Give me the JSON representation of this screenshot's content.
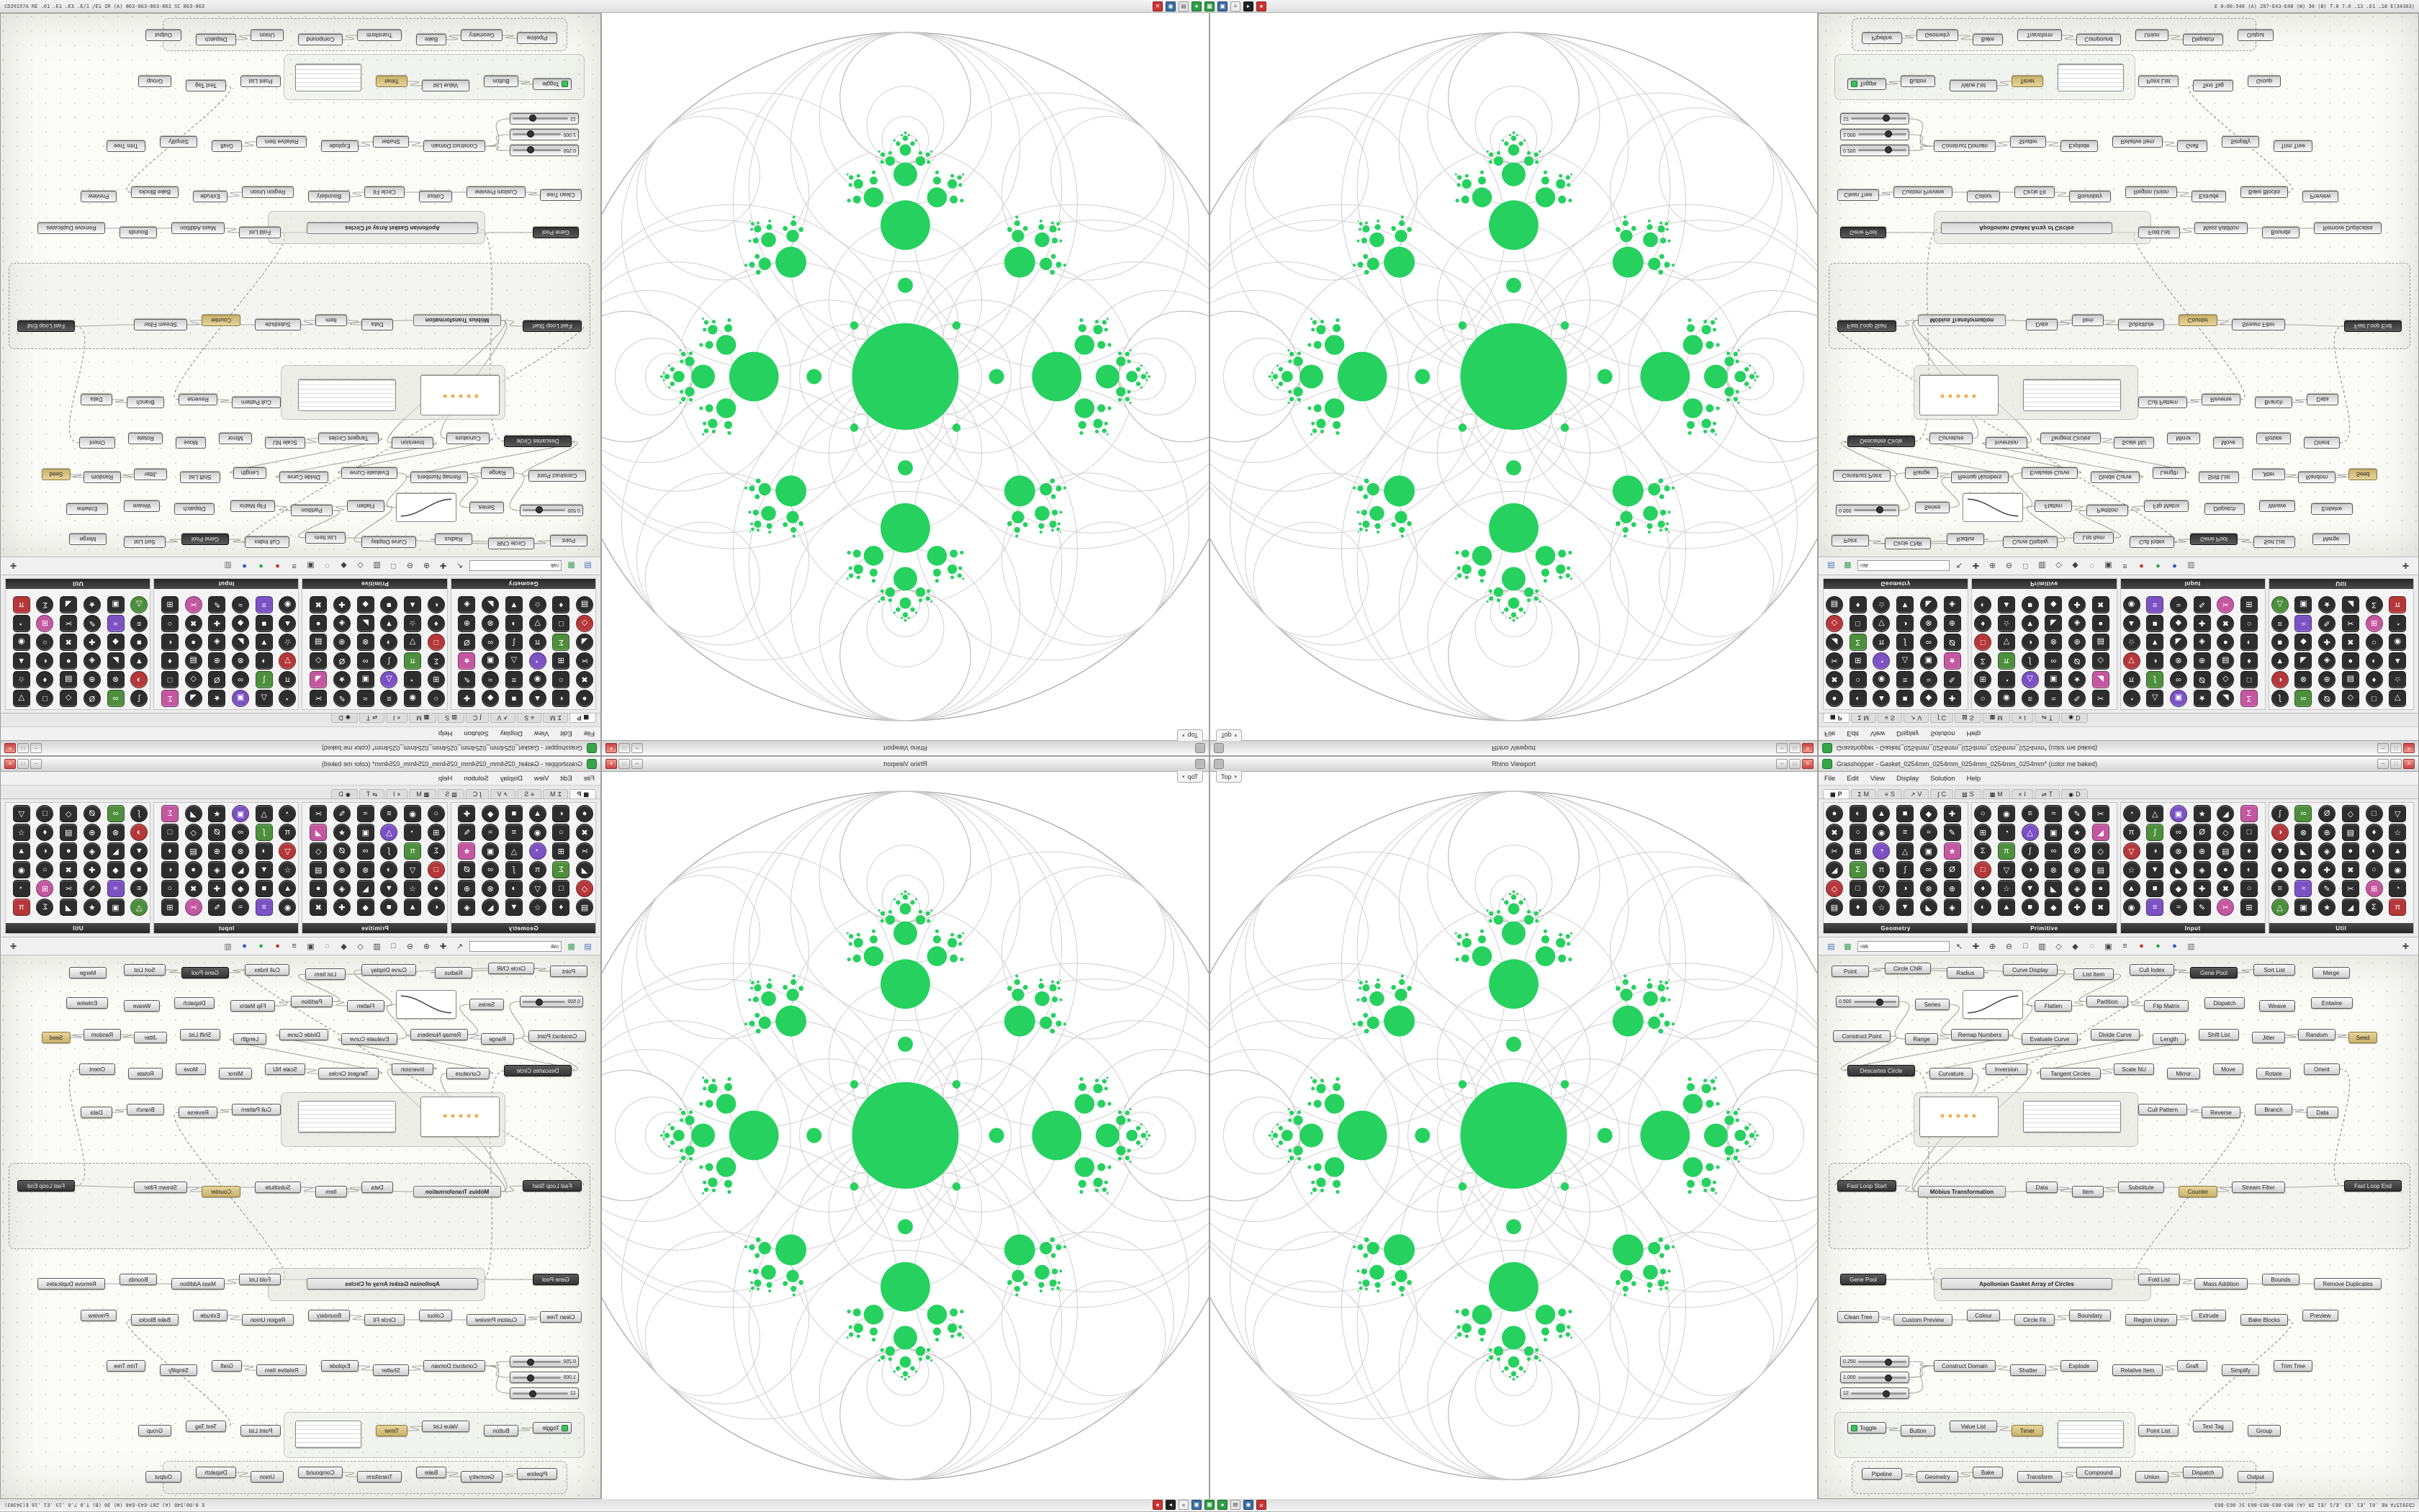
{
  "strip": {
    "left_text": "CD39157A RE .01 .E1 .E3 .E/1 /E1 IR (A) 863-863-863-863 SC 863-863",
    "right_text": "E 0:00:548 (A) 287-E43-E48 (W) 30 (B) T.0 7.0 .13 .E1 .18 E(34303)",
    "icons": [
      {
        "name": "close-window-icon",
        "glyph": "✕",
        "color": "#cc3333",
        "fg": "#fff"
      },
      {
        "name": "rhino-app-icon",
        "glyph": "◉",
        "color": "#3a6ea5",
        "fg": "#fff"
      },
      {
        "name": "file-manager-icon",
        "glyph": "▤",
        "color": "#e8e8e8",
        "fg": "#555"
      },
      {
        "name": "grasshopper-app-icon",
        "glyph": "●",
        "color": "#2e9e44",
        "fg": "#fff"
      },
      {
        "name": "display-settings-icon",
        "glyph": "▦",
        "color": "#2e9e44",
        "fg": "#fff"
      },
      {
        "name": "panel-manager-icon",
        "glyph": "▣",
        "color": "#3a6ea5",
        "fg": "#fff"
      },
      {
        "name": "document-icon",
        "glyph": "≡",
        "color": "#f0f0f0",
        "fg": "#555"
      },
      {
        "name": "terminal-icon",
        "glyph": "▸",
        "color": "#222222",
        "fg": "#fff"
      },
      {
        "name": "record-icon",
        "glyph": "●",
        "color": "#cc3333",
        "fg": "#fff"
      }
    ]
  },
  "viewport": {
    "title": "Rhino Viewport",
    "top_tab": "Top",
    "caret": "▾",
    "window_buttons": [
      "–",
      "□",
      "×"
    ]
  },
  "fractal": {
    "green": "#26d15f",
    "lace_stroke": "#cfcfcf",
    "outer_stroke": "#b2b2b2"
  },
  "grasshopper": {
    "title": "Grasshopper - Gasket_0254mm_0254mm_0254mm_0254mm_0254mm* (color me baked)",
    "window_buttons": [
      "–",
      "□",
      "×"
    ],
    "menus": [
      "File",
      "Edit",
      "View",
      "Display",
      "Solution",
      "Help"
    ],
    "tabs": [
      {
        "name": "Params",
        "short": "P",
        "glyph": "▦",
        "selected": true
      },
      {
        "name": "Maths",
        "short": "M",
        "glyph": "Σ"
      },
      {
        "name": "Sets",
        "short": "S",
        "glyph": "≡"
      },
      {
        "name": "Vector",
        "short": "V",
        "glyph": "↗"
      },
      {
        "name": "Curve",
        "short": "C",
        "glyph": "∫"
      },
      {
        "name": "Surface",
        "short": "S",
        "glyph": "▧"
      },
      {
        "name": "Mesh",
        "short": "M",
        "glyph": "▩"
      },
      {
        "name": "Intersect",
        "short": "I",
        "glyph": "×"
      },
      {
        "name": "Transform",
        "short": "T",
        "glyph": "⇄"
      },
      {
        "name": "Display",
        "short": "D",
        "glyph": "◉"
      }
    ],
    "palette": {
      "groups": [
        "Geometry",
        "Primitive",
        "Input",
        "Util"
      ],
      "icon_glyphs": "●◐▲■◆✚✖○◉≡≈✎✂⊞◔△▣★◢Σπ∫∞Ø◇□▽◑⊗⊕▤♦☆▼◣◈",
      "icons_per_group": 36
    },
    "toolbar": {
      "search_value": "rak",
      "icons": [
        {
          "name": "open-definition-icon",
          "glyph": "▤",
          "color": "#4a7ab5"
        },
        {
          "name": "save-definition-icon",
          "glyph": "▦",
          "color": "#3f9e4f"
        },
        {
          "name": "selection-arrow-icon",
          "glyph": "↖",
          "color": "#444"
        },
        {
          "name": "pan-icon",
          "glyph": "✚",
          "color": "#444"
        },
        {
          "name": "zoom-in-icon",
          "glyph": "⊕",
          "color": "#444"
        },
        {
          "name": "zoom-out-icon",
          "glyph": "⊖",
          "color": "#444"
        },
        {
          "name": "zoom-extents-icon",
          "glyph": "□",
          "color": "#444"
        },
        {
          "name": "named-views-icon",
          "glyph": "▥",
          "color": "#444"
        },
        {
          "name": "preview-wireframe-icon",
          "glyph": "◇",
          "color": "#444"
        },
        {
          "name": "preview-shaded-icon",
          "glyph": "◆",
          "color": "#444"
        },
        {
          "name": "hide-preview-icon",
          "glyph": "◌",
          "color": "#444"
        },
        {
          "name": "group-icon",
          "glyph": "▣",
          "color": "#444"
        },
        {
          "name": "cluster-icon",
          "glyph": "≡",
          "color": "#444"
        },
        {
          "name": "red-channel-icon",
          "glyph": "●",
          "color": "#cc3333"
        },
        {
          "name": "green-channel-icon",
          "glyph": "●",
          "color": "#33aa44"
        },
        {
          "name": "blue-channel-icon",
          "glyph": "●",
          "color": "#3355cc"
        },
        {
          "name": "gradient-icon",
          "glyph": "▥",
          "color": "#666"
        },
        {
          "name": "canvas-compass-icon",
          "glyph": "✚",
          "color": "#555"
        }
      ]
    },
    "canvas": {
      "groups": [
        [
          14,
          288,
          806,
          118,
          "dashed"
        ],
        [
          132,
          190,
          310,
          74,
          "light"
        ],
        [
          160,
          434,
          300,
          44,
          "light"
        ],
        [
          22,
          634,
          416,
          62,
          "dotted"
        ],
        [
          46,
          702,
          560,
          44,
          "dashed"
        ]
      ],
      "nodes": [
        [
          18,
          14,
          52,
          "Point",
          "p"
        ],
        [
          92,
          10,
          64,
          "Circle CNR",
          "p"
        ],
        [
          178,
          16,
          52,
          "Radius",
          "p"
        ],
        [
          256,
          12,
          76,
          "Curve Display",
          "p"
        ],
        [
          354,
          18,
          56,
          "List Item",
          "p"
        ],
        [
          432,
          12,
          62,
          "Cull Index",
          "p"
        ],
        [
          516,
          16,
          66,
          "Gene Pool",
          "d"
        ],
        [
          604,
          12,
          58,
          "Sort List",
          "p"
        ],
        [
          686,
          16,
          52,
          "Merge",
          "p"
        ],
        [
          24,
          56,
          88,
          "0.500",
          "s"
        ],
        [
          134,
          60,
          48,
          "Series",
          "p"
        ],
        [
          200,
          48,
          84,
          "Graph Mapper",
          "g",
          40
        ],
        [
          300,
          62,
          52,
          "Flatten",
          "p"
        ],
        [
          372,
          56,
          58,
          "Partition",
          "p"
        ],
        [
          452,
          62,
          62,
          "Flip Matrix",
          "p"
        ],
        [
          536,
          58,
          56,
          "Dispatch",
          "p"
        ],
        [
          612,
          62,
          50,
          "Weave",
          "p"
        ],
        [
          684,
          58,
          58,
          "Entwine",
          "p"
        ],
        [
          20,
          104,
          80,
          "Construct Point",
          "p"
        ],
        [
          120,
          108,
          46,
          "Range",
          "p"
        ],
        [
          184,
          102,
          80,
          "Remap Numbers",
          "p"
        ],
        [
          282,
          108,
          78,
          "Evaluate Curve",
          "p"
        ],
        [
          378,
          102,
          68,
          "Divide Curve",
          "p"
        ],
        [
          464,
          108,
          46,
          "Length",
          "p"
        ],
        [
          528,
          102,
          56,
          "Shift List",
          "p"
        ],
        [
          602,
          106,
          46,
          "Jitter",
          "p"
        ],
        [
          666,
          102,
          52,
          "Random",
          "p"
        ],
        [
          736,
          106,
          40,
          "Seed",
          "y"
        ],
        [
          40,
          152,
          94,
          "Descartes Circle",
          "d"
        ],
        [
          154,
          156,
          60,
          "Curvature",
          "p"
        ],
        [
          232,
          150,
          58,
          "Inversion",
          "p"
        ],
        [
          308,
          156,
          84,
          "Tangent Circles",
          "p"
        ],
        [
          410,
          150,
          56,
          "Scale NU",
          "p"
        ],
        [
          484,
          156,
          46,
          "Mirror",
          "p"
        ],
        [
          548,
          150,
          42,
          "Move",
          "p"
        ],
        [
          608,
          156,
          48,
          "Rotate",
          "p"
        ],
        [
          674,
          150,
          50,
          "Orient",
          "p"
        ],
        [
          140,
          196,
          110,
          "★★★★★",
          "S",
          56
        ],
        [
          284,
          202,
          136,
          "",
          "P",
          44
        ],
        [
          444,
          206,
          68,
          "Cull Pattern",
          "p"
        ],
        [
          532,
          210,
          54,
          "Reverse",
          "p"
        ],
        [
          606,
          206,
          52,
          "Branch",
          "p"
        ],
        [
          678,
          210,
          44,
          "Data",
          "p"
        ],
        [
          26,
          312,
          82,
          "Fast Loop Start",
          "d"
        ],
        [
          730,
          312,
          80,
          "Fast Loop End",
          "d"
        ],
        [
          138,
          320,
          122,
          "Möbius Transformation",
          "w"
        ],
        [
          288,
          314,
          44,
          "Data",
          "p"
        ],
        [
          352,
          320,
          44,
          "Item",
          "p"
        ],
        [
          416,
          314,
          64,
          "Substitute",
          "p"
        ],
        [
          500,
          320,
          54,
          "Counter",
          "y"
        ],
        [
          574,
          314,
          74,
          "Stream Filter",
          "p"
        ],
        [
          170,
          448,
          238,
          "Apollonian Gasket Array of Circles",
          "w"
        ],
        [
          30,
          442,
          64,
          "Gene Pool",
          "d"
        ],
        [
          444,
          442,
          58,
          "Fold List",
          "p"
        ],
        [
          522,
          448,
          74,
          "Mass Addition",
          "p"
        ],
        [
          616,
          442,
          52,
          "Bounds",
          "p"
        ],
        [
          688,
          448,
          94,
          "Remove Duplicates",
          "p"
        ],
        [
          26,
          494,
          58,
          "Clean Tree",
          "p"
        ],
        [
          104,
          498,
          82,
          "Custom Preview",
          "p"
        ],
        [
          206,
          492,
          46,
          "Colour",
          "p"
        ],
        [
          272,
          498,
          56,
          "Circle Fit",
          "p"
        ],
        [
          348,
          492,
          58,
          "Boundary",
          "p"
        ],
        [
          426,
          498,
          72,
          "Region Union",
          "p"
        ],
        [
          518,
          492,
          48,
          "Extrude",
          "p"
        ],
        [
          586,
          498,
          66,
          "Bake Blocks",
          "p"
        ],
        [
          672,
          492,
          50,
          "Preview",
          "p"
        ],
        [
          30,
          556,
          96,
          "0.250",
          "s"
        ],
        [
          30,
          578,
          96,
          "1.000",
          "s"
        ],
        [
          30,
          600,
          96,
          "12",
          "s"
        ],
        [
          160,
          562,
          86,
          "Construct Domain",
          "p"
        ],
        [
          266,
          568,
          50,
          "Shatter",
          "p"
        ],
        [
          336,
          562,
          52,
          "Explode",
          "p"
        ],
        [
          408,
          568,
          70,
          "Relative Item",
          "p"
        ],
        [
          498,
          562,
          42,
          "Graft",
          "p"
        ],
        [
          560,
          568,
          52,
          "Simplify",
          "p"
        ],
        [
          632,
          562,
          54,
          "Trim Tree",
          "p"
        ],
        [
          40,
          648,
          54,
          "Toggle",
          "t"
        ],
        [
          114,
          652,
          48,
          "Button",
          "p"
        ],
        [
          182,
          646,
          66,
          "Value List",
          "p"
        ],
        [
          268,
          652,
          44,
          "Timer",
          "y"
        ],
        [
          332,
          646,
          92,
          "",
          "P",
          38
        ],
        [
          444,
          652,
          56,
          "Point List",
          "p"
        ],
        [
          520,
          646,
          56,
          "Text Tag",
          "p"
        ],
        [
          596,
          652,
          46,
          "Group",
          "p"
        ],
        [
          60,
          712,
          56,
          "Pipeline",
          "p"
        ],
        [
          136,
          716,
          58,
          "Geometry",
          "p"
        ],
        [
          214,
          710,
          42,
          "Bake",
          "p"
        ],
        [
          276,
          716,
          62,
          "Transform",
          "p"
        ],
        [
          358,
          710,
          62,
          "Compound",
          "p"
        ],
        [
          440,
          716,
          46,
          "Union",
          "p"
        ],
        [
          506,
          710,
          56,
          "Dispatch",
          "p"
        ],
        [
          582,
          716,
          50,
          "Output",
          "p"
        ]
      ],
      "wires": [
        [
          0,
          1,
          0
        ],
        [
          2,
          1,
          0
        ],
        [
          1,
          4,
          0
        ],
        [
          3,
          12,
          0
        ],
        [
          4,
          13,
          0
        ],
        [
          5,
          6,
          0
        ],
        [
          6,
          7,
          0
        ],
        [
          9,
          19,
          0
        ],
        [
          10,
          20,
          0
        ],
        [
          11,
          21,
          0
        ],
        [
          12,
          13,
          0
        ],
        [
          13,
          14,
          0
        ],
        [
          18,
          28,
          0
        ],
        [
          19,
          20,
          0
        ],
        [
          20,
          28,
          0
        ],
        [
          21,
          29,
          0
        ],
        [
          22,
          30,
          0
        ],
        [
          23,
          31,
          0
        ],
        [
          25,
          26,
          0
        ],
        [
          26,
          27,
          0
        ],
        [
          29,
          45,
          0
        ],
        [
          30,
          45,
          0
        ],
        [
          31,
          32,
          0
        ],
        [
          39,
          40,
          0
        ],
        [
          41,
          42,
          0
        ],
        [
          43,
          45,
          0
        ],
        [
          45,
          48,
          0
        ],
        [
          46,
          47,
          0
        ],
        [
          47,
          48,
          0
        ],
        [
          48,
          50,
          0
        ],
        [
          49,
          50,
          0
        ],
        [
          50,
          44,
          0
        ],
        [
          52,
          53,
          0
        ],
        [
          53,
          54,
          0
        ],
        [
          54,
          56,
          0
        ],
        [
          57,
          58,
          0
        ],
        [
          58,
          60,
          0
        ],
        [
          60,
          61,
          0
        ],
        [
          62,
          63,
          0
        ],
        [
          66,
          69,
          0
        ],
        [
          67,
          69,
          0
        ],
        [
          68,
          69,
          0
        ],
        [
          69,
          70,
          0
        ],
        [
          70,
          71,
          0
        ],
        [
          72,
          73,
          0
        ],
        [
          76,
          77,
          0
        ],
        [
          78,
          79,
          0
        ],
        [
          84,
          85,
          0
        ],
        [
          85,
          86,
          0
        ],
        [
          87,
          88,
          0
        ],
        [
          89,
          90,
          0
        ],
        [
          5,
          43,
          1
        ],
        [
          28,
          51,
          1
        ],
        [
          40,
          53,
          1
        ],
        [
          64,
          82,
          1
        ],
        [
          36,
          44,
          1
        ]
      ]
    }
  }
}
